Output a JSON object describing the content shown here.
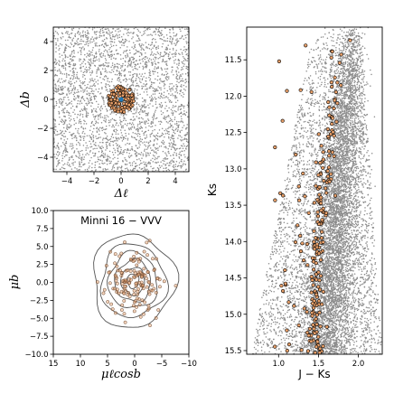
{
  "chart_data": [
    {
      "type": "scatter",
      "panel": "top-left",
      "xlabel": "Δℓ",
      "ylabel": "Δb",
      "xlim": [
        -5,
        5
      ],
      "ylim": [
        -5,
        5
      ],
      "xticks": [
        -4,
        -2,
        0,
        2,
        4
      ],
      "yticks": [
        -4,
        -2,
        0,
        2,
        4
      ],
      "xtick_labels": [
        "−4",
        "−2",
        "0",
        "2",
        "4"
      ],
      "ytick_labels": [
        "−4",
        "−2",
        "0",
        "2",
        "4"
      ],
      "series": [
        {
          "role": "field stars",
          "color": "#8c8c8c",
          "distribution": "uniform",
          "x_range": [
            -5,
            5
          ],
          "y_range": [
            -5,
            5
          ],
          "count": 3000
        },
        {
          "role": "cluster members",
          "color": "#e8a06a",
          "edge": "#000000",
          "center": [
            0,
            0
          ],
          "radius": 0.95,
          "count": 150
        },
        {
          "role": "cluster centre",
          "color": "#1f77b4",
          "x": 0,
          "y": 0
        }
      ]
    },
    {
      "type": "scatter",
      "panel": "bottom-left",
      "title": "Minni 16 − VVV",
      "xlabel": "μℓcosb",
      "ylabel": "μb",
      "xlim": [
        15,
        -10
      ],
      "ylim": [
        -10,
        10
      ],
      "xticks": [
        15,
        10,
        5,
        0,
        -5,
        -10
      ],
      "yticks": [
        -10.0,
        -7.5,
        -5.0,
        -2.5,
        0.0,
        2.5,
        5.0,
        7.5,
        10.0
      ],
      "xtick_labels": [
        "15",
        "10",
        "5",
        "0",
        "−5",
        "−10"
      ],
      "ytick_labels": [
        "−10.0",
        "−7.5",
        "−5.0",
        "−2.5",
        "0.0",
        "2.5",
        "5.0",
        "7.5",
        "10.0"
      ],
      "series": [
        {
          "role": "proper-motion members",
          "color": "#e8a06a",
          "edge": "#6b4a33",
          "center": [
            0.2,
            0.1
          ],
          "sigma": [
            2.6,
            2.3
          ],
          "count": 150
        },
        {
          "role": "density contours",
          "color": "#555555",
          "center": [
            0.3,
            0.2
          ],
          "radii_x": [
            1.1,
            2.2,
            3.3,
            4.5,
            6.0,
            7.6
          ],
          "radii_y": [
            1.0,
            1.9,
            2.9,
            3.9,
            5.1,
            6.5
          ]
        }
      ]
    },
    {
      "type": "scatter",
      "panel": "right",
      "xlabel": "J − Ks",
      "ylabel": "Ks",
      "xlim": [
        0.6,
        2.3
      ],
      "ylim": [
        15.55,
        11.05
      ],
      "xticks": [
        1.0,
        1.5,
        2.0
      ],
      "yticks": [
        11.5,
        12.0,
        12.5,
        13.0,
        13.5,
        14.0,
        14.5,
        15.0,
        15.5
      ],
      "xtick_labels": [
        "1.0",
        "1.5",
        "2.0"
      ],
      "ytick_labels": [
        "11.5",
        "12.0",
        "12.5",
        "13.0",
        "13.5",
        "14.0",
        "14.5",
        "15.0",
        "15.5"
      ],
      "series": [
        {
          "role": "field stars",
          "color": "#8c8c8c",
          "count": 9000
        },
        {
          "role": "cluster members",
          "color": "#e8a06a",
          "edge": "#000000",
          "count": 220,
          "sequence": [
            [
              11.1,
              1.83
            ],
            [
              12.0,
              1.7
            ],
            [
              13.0,
              1.57
            ],
            [
              14.0,
              1.5
            ],
            [
              15.0,
              1.46
            ],
            [
              15.5,
              1.47
            ]
          ]
        }
      ]
    }
  ]
}
